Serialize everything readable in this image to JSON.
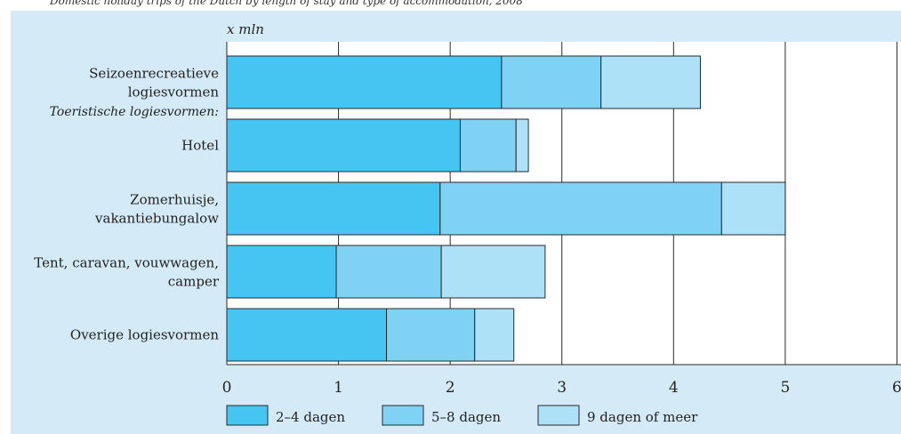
{
  "caption": "Domestic holiday trips of the Dutch by length of stay and type of accommodation, 2008",
  "colors": {
    "panel": "#d4ebf7",
    "plot_bg": "#ffffff",
    "series": [
      "#44c5f2",
      "#80d2f4",
      "#ade1f8"
    ],
    "edge": "#2a2a2a"
  },
  "chart_data": {
    "type": "bar",
    "orientation": "horizontal",
    "stacked": true,
    "unit_label": "x mln",
    "subheading": "Toeristische logiesvormen:",
    "categories": [
      [
        "Seizoenrecreatieve",
        "logiesvormen"
      ],
      [
        "Hotel"
      ],
      [
        "Zomerhuisje,",
        "vakantiebungalow"
      ],
      [
        "Tent, caravan, vouwwagen,",
        "camper"
      ],
      [
        "Overige logiesvormen"
      ]
    ],
    "series": [
      {
        "name": "2–4 dagen",
        "values": [
          2.46,
          2.09,
          1.91,
          0.98,
          1.43
        ]
      },
      {
        "name": "5–8 dagen",
        "values": [
          0.89,
          0.5,
          2.52,
          0.94,
          0.79
        ]
      },
      {
        "name": "9 dagen of meer",
        "values": [
          0.89,
          0.11,
          0.57,
          0.93,
          0.35
        ]
      }
    ],
    "xticks": [
      0,
      1,
      2,
      3,
      4,
      5,
      6
    ],
    "xtick_labels": [
      "0",
      "1",
      "2",
      "3",
      "4",
      "5",
      "6"
    ],
    "xlim": [
      0,
      6
    ],
    "grid": true,
    "legend": "bottom"
  }
}
